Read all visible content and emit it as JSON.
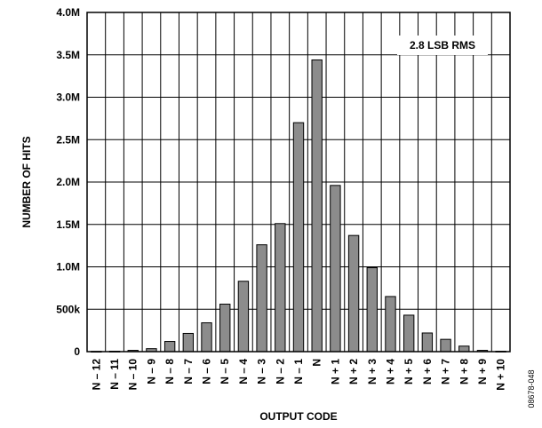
{
  "chart_data": {
    "type": "bar",
    "title": "",
    "xlabel": "OUTPUT CODE",
    "ylabel": "NUMBER OF HITS",
    "categories": [
      "N – 12",
      "N – 11",
      "N – 10",
      "N – 9",
      "N – 8",
      "N – 7",
      "N – 6",
      "N – 5",
      "N – 4",
      "N – 3",
      "N – 2",
      "N – 1",
      "N",
      "N + 1",
      "N + 2",
      "N + 3",
      "N + 4",
      "N + 5",
      "N + 6",
      "N + 7",
      "N + 8",
      "N + 9",
      "N + 10"
    ],
    "values": [
      3000,
      5000,
      15000,
      35000,
      120000,
      215000,
      340000,
      560000,
      830000,
      1260000,
      1510000,
      2700000,
      3440000,
      1960000,
      1370000,
      990000,
      650000,
      430000,
      220000,
      145000,
      65000,
      15000,
      5000
    ],
    "ylim": [
      0,
      4000000
    ],
    "yticks": [
      0,
      500000,
      1000000,
      1500000,
      2000000,
      2500000,
      3000000,
      3500000,
      4000000
    ],
    "ytick_labels": [
      "0",
      "500k",
      "1.0M",
      "1.5M",
      "2.0M",
      "2.5M",
      "3.0M",
      "3.5M",
      "4.0M"
    ],
    "grid": true,
    "bar_color": "#8c8c8c",
    "annotation": "2.8 LSB RMS",
    "figure_id": "08678-048"
  }
}
